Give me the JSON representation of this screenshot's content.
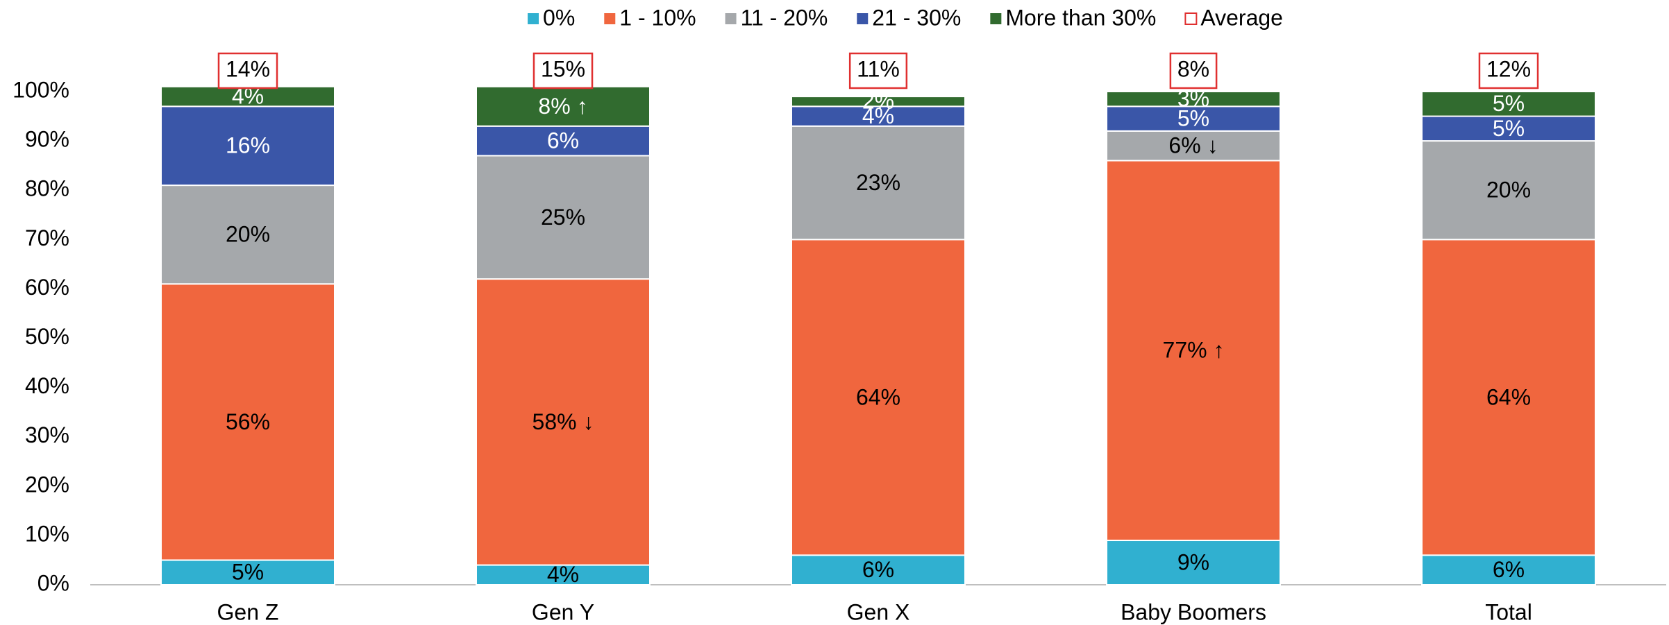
{
  "chart_data": {
    "type": "stacked_bar",
    "categories": [
      "Gen Z",
      "Gen Y",
      "Gen X",
      "Baby Boomers",
      "Total"
    ],
    "series": [
      {
        "name": "0%",
        "color": "#30b0d0",
        "label_color": "#000000",
        "values": [
          5,
          4,
          6,
          9,
          6
        ],
        "value_labels": [
          "5%",
          "4%",
          "6%",
          "9%",
          "6%"
        ]
      },
      {
        "name": "1 - 10%",
        "color": "#f0663e",
        "label_color": "#000000",
        "values": [
          56,
          58,
          64,
          77,
          64
        ],
        "value_labels": [
          "56%",
          "58% ↓",
          "64%",
          "77% ↑",
          "64%"
        ]
      },
      {
        "name": "11 - 20%",
        "color": "#a5a8ab",
        "label_color": "#000000",
        "values": [
          20,
          25,
          23,
          6,
          20
        ],
        "value_labels": [
          "20%",
          "25%",
          "23%",
          "6% ↓",
          "20%"
        ]
      },
      {
        "name": "21 - 30%",
        "color": "#3a56a8",
        "label_color": "#ffffff",
        "values": [
          16,
          6,
          4,
          5,
          5
        ],
        "value_labels": [
          "16%",
          "6%",
          "4%",
          "5%",
          "5%"
        ]
      },
      {
        "name": "More than 30%",
        "color": "#316b2f",
        "label_color": "#ffffff",
        "values": [
          4,
          8,
          2,
          3,
          5
        ],
        "value_labels": [
          "4%",
          "8% ↑",
          "2%",
          "3%",
          "5%"
        ]
      }
    ],
    "average": {
      "name": "Average",
      "color": "#e03030",
      "values": [
        14,
        15,
        11,
        8,
        12
      ],
      "value_labels": [
        "14%",
        "15%",
        "11%",
        "8%",
        "12%"
      ]
    },
    "ylim": [
      0,
      100
    ],
    "yticks": [
      {
        "value": 0,
        "label": "0%"
      },
      {
        "value": 10,
        "label": "10%"
      },
      {
        "value": 20,
        "label": "20%"
      },
      {
        "value": 30,
        "label": "30%"
      },
      {
        "value": 40,
        "label": "40%"
      },
      {
        "value": 50,
        "label": "50%"
      },
      {
        "value": 60,
        "label": "60%"
      },
      {
        "value": 70,
        "label": "70%"
      },
      {
        "value": 80,
        "label": "80%"
      },
      {
        "value": 90,
        "label": "90%"
      },
      {
        "value": 100,
        "label": "100%"
      }
    ],
    "grid": false,
    "legend": "top"
  }
}
